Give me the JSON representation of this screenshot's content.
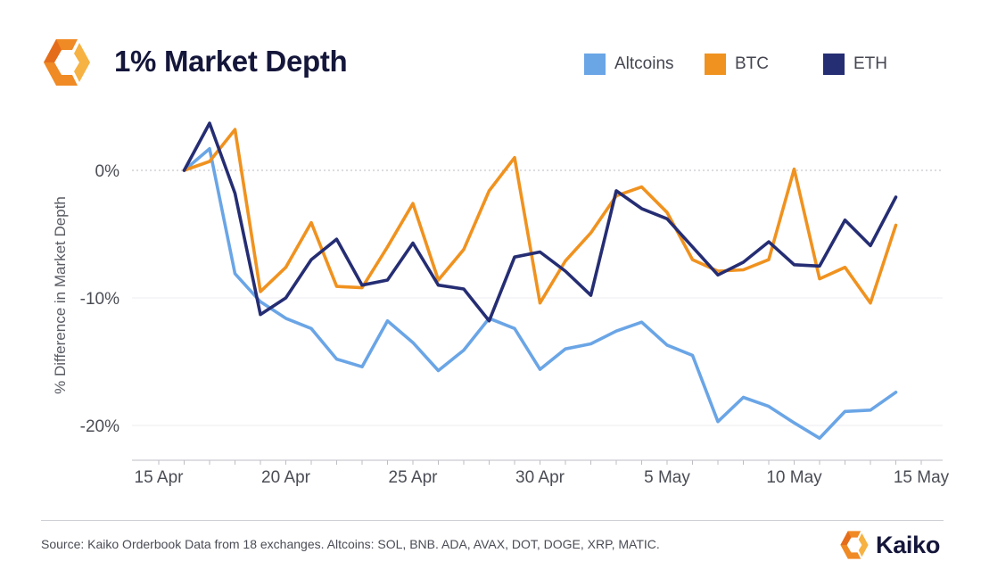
{
  "header": {
    "title": "1% Market Depth",
    "logo_icon": "kaiko-hexagon-icon"
  },
  "legend": [
    {
      "label": "Altcoins",
      "color": "#6aa5e6"
    },
    {
      "label": "BTC",
      "color": "#f0921f"
    },
    {
      "label": "ETH",
      "color": "#252d73"
    }
  ],
  "chart_data": {
    "type": "line",
    "ylabel": "% Difference in Market Depth",
    "ylim": [
      -23,
      5
    ],
    "yticks": [
      0,
      -10,
      -20
    ],
    "ytick_labels": [
      "0%",
      "-10%",
      "-20%"
    ],
    "zero_line": "dotted",
    "grid": "horizontal",
    "x_dates": [
      "16 Apr",
      "17 Apr",
      "18 Apr",
      "19 Apr",
      "20 Apr",
      "21 Apr",
      "22 Apr",
      "23 Apr",
      "24 Apr",
      "25 Apr",
      "26 Apr",
      "27 Apr",
      "28 Apr",
      "29 Apr",
      "30 Apr",
      "1 May",
      "2 May",
      "3 May",
      "4 May",
      "5 May",
      "6 May",
      "7 May",
      "8 May",
      "9 May",
      "10 May",
      "11 May",
      "12 May",
      "13 May",
      "14 May",
      "15 May"
    ],
    "x_day_index": [
      16,
      17,
      18,
      19,
      20,
      21,
      22,
      23,
      24,
      25,
      26,
      27,
      28,
      29,
      30,
      31,
      32,
      33,
      34,
      35,
      36,
      37,
      38,
      39,
      40,
      41,
      42,
      43,
      44,
      45
    ],
    "xticks": [
      {
        "label": "15 Apr",
        "day": 15
      },
      {
        "label": "20 Apr",
        "day": 20
      },
      {
        "label": "25 Apr",
        "day": 25
      },
      {
        "label": "30 Apr",
        "day": 30
      },
      {
        "label": "5 May",
        "day": 35
      },
      {
        "label": "10 May",
        "day": 40
      },
      {
        "label": "15 May",
        "day": 45
      }
    ],
    "series": [
      {
        "name": "Altcoins",
        "values": [
          0,
          1.7,
          -8.1,
          -10.3,
          -11.6,
          -12.4,
          -14.8,
          -15.4,
          -11.8,
          -13.5,
          -15.7,
          -14.1,
          -11.6,
          -12.4,
          -15.6,
          -14.0,
          -13.6,
          -12.6,
          -11.9,
          -13.7,
          -14.5,
          -19.7,
          -17.8,
          -18.5,
          -19.8,
          -21.0,
          -18.9,
          -18.8,
          -17.4,
          null
        ],
        "color": "#6aa5e6"
      },
      {
        "name": "BTC",
        "values": [
          0,
          0.7,
          3.2,
          -9.5,
          -7.6,
          -4.1,
          -9.1,
          -9.2,
          -6.0,
          -2.6,
          -8.6,
          -6.2,
          -1.6,
          1.0,
          -10.4,
          -7.1,
          -4.9,
          -2.0,
          -1.3,
          -3.3,
          -7.0,
          -7.9,
          -7.8,
          -7.0,
          0.1,
          -8.5,
          -7.6,
          -10.4,
          -4.3,
          null
        ],
        "color": "#f0921f"
      },
      {
        "name": "ETH",
        "values": [
          0,
          3.7,
          -1.8,
          -11.3,
          -10.0,
          -7.0,
          -5.4,
          -9.0,
          -8.6,
          -5.7,
          -9.0,
          -9.3,
          -11.8,
          -6.8,
          -6.4,
          -7.9,
          -9.8,
          -1.6,
          -3.0,
          -3.8,
          -6.0,
          -8.2,
          -7.2,
          -5.6,
          -7.4,
          -7.5,
          -3.9,
          -5.9,
          -2.1,
          null
        ],
        "color": "#252d73"
      }
    ]
  },
  "footer": {
    "source": "Source: Kaiko Orderbook Data from 18 exchanges. Altcoins: SOL, BNB. ADA, AVAX, DOT, DOGE, XRP, MATIC.",
    "brand": "Kaiko",
    "brand_icon": "kaiko-hexagon-icon"
  }
}
